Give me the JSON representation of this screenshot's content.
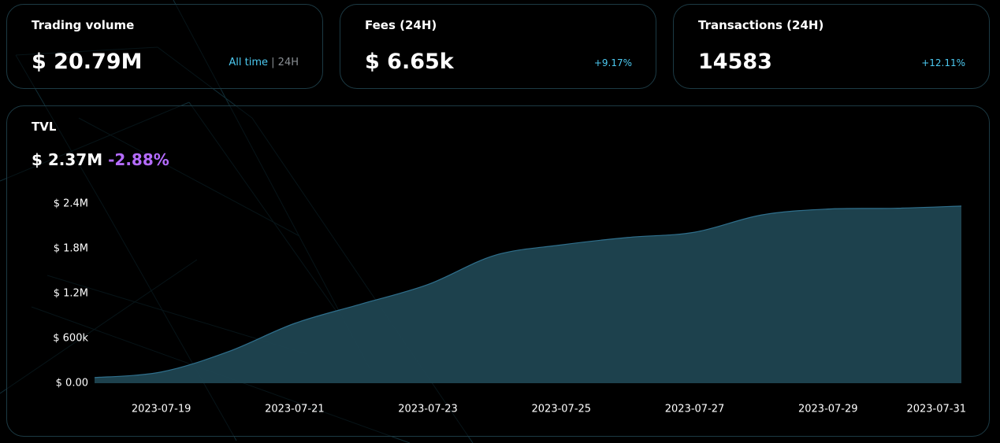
{
  "cards": [
    {
      "title": "Trading volume",
      "value": "$ 20.79M",
      "toggle": {
        "options": [
          "All time",
          "24H"
        ],
        "separator": "|"
      }
    },
    {
      "title": "Fees (24H)",
      "value": "$ 6.65k",
      "change": "+9.17%"
    },
    {
      "title": "Transactions (24H)",
      "value": "14583",
      "change": "+12.11%"
    }
  ],
  "tvl": {
    "title": "TVL",
    "value": "$ 2.37M",
    "change": "-2.88%"
  },
  "chart_data": {
    "type": "area",
    "x": [
      "2023-07-18",
      "2023-07-19",
      "2023-07-20",
      "2023-07-21",
      "2023-07-22",
      "2023-07-23",
      "2023-07-24",
      "2023-07-25",
      "2023-07-26",
      "2023-07-27",
      "2023-07-28",
      "2023-07-29",
      "2023-07-30",
      "2023-07-31"
    ],
    "values": [
      75000,
      150000,
      420000,
      800000,
      1060000,
      1320000,
      1710000,
      1850000,
      1950000,
      2020000,
      2250000,
      2330000,
      2340000,
      2370000
    ],
    "color": "#1f4551",
    "line_color": "#2f6f8c",
    "xlim": [
      "2023-07-18",
      "2023-07-31"
    ],
    "xticks": [
      "2023-07-19",
      "2023-07-21",
      "2023-07-23",
      "2023-07-25",
      "2023-07-27",
      "2023-07-29",
      "2023-07-31"
    ],
    "ylim": [
      0,
      2400000
    ],
    "yticks": [
      {
        "value": 0,
        "label": "$ 0.00"
      },
      {
        "value": 600000,
        "label": "$ 600k"
      },
      {
        "value": 1200000,
        "label": "$ 1.2M"
      },
      {
        "value": 1800000,
        "label": "$ 1.8M"
      },
      {
        "value": 2400000,
        "label": "$ 2.4M"
      }
    ],
    "grid": false
  }
}
